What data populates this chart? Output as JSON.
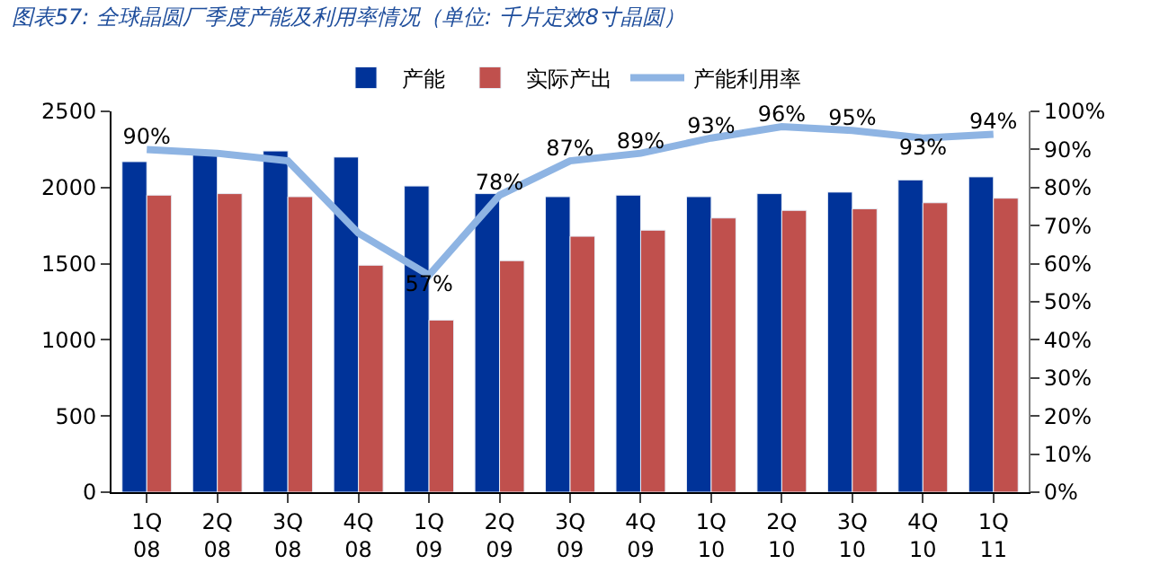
{
  "chart_data": {
    "type": "bar",
    "title": "图表57: 全球晶圆厂季度产能及利用率情况（单位: 千片定效8寸晶圆）",
    "categories": [
      "1Q\n08",
      "2Q\n08",
      "3Q\n08",
      "4Q\n08",
      "1Q\n09",
      "2Q\n09",
      "3Q\n09",
      "4Q\n09",
      "1Q\n10",
      "2Q\n10",
      "3Q\n10",
      "4Q\n10",
      "1Q\n11"
    ],
    "series": [
      {
        "name": "产能",
        "color": "#003399",
        "values": [
          2170,
          2220,
          2240,
          2200,
          2010,
          1960,
          1940,
          1950,
          1940,
          1960,
          1970,
          2050,
          2070
        ]
      },
      {
        "name": "实际产出",
        "color": "#c0504d",
        "values": [
          1950,
          1960,
          1940,
          1490,
          1130,
          1520,
          1680,
          1720,
          1800,
          1850,
          1860,
          1900,
          1930
        ]
      },
      {
        "name": "产能利用率",
        "type": "line",
        "axis": "y2",
        "color": "#8eb4e3",
        "values": [
          90,
          89,
          87,
          68,
          57,
          78,
          87,
          89,
          93,
          96,
          95,
          93,
          94
        ],
        "value_labels": [
          "90%",
          null,
          null,
          null,
          "57%",
          "78%",
          "87%",
          "89%",
          "93%",
          "96%",
          "95%",
          "93%",
          "94%"
        ]
      }
    ],
    "ylim": [
      0,
      2500
    ],
    "yticks": [
      0,
      500,
      1000,
      1500,
      2000,
      2500
    ],
    "y2lim": [
      0,
      100
    ],
    "y2ticks": [
      {
        "value": 0,
        "label": "0%"
      },
      {
        "value": 10,
        "label": "10%"
      },
      {
        "value": 20,
        "label": "20%"
      },
      {
        "value": 30,
        "label": "30%"
      },
      {
        "value": 40,
        "label": "40%"
      },
      {
        "value": 50,
        "label": "50%"
      },
      {
        "value": 60,
        "label": "60%"
      },
      {
        "value": 70,
        "label": "70%"
      },
      {
        "value": 80,
        "label": "80%"
      },
      {
        "value": 90,
        "label": "90%"
      },
      {
        "value": 100,
        "label": "100%"
      }
    ],
    "legend": "top"
  }
}
